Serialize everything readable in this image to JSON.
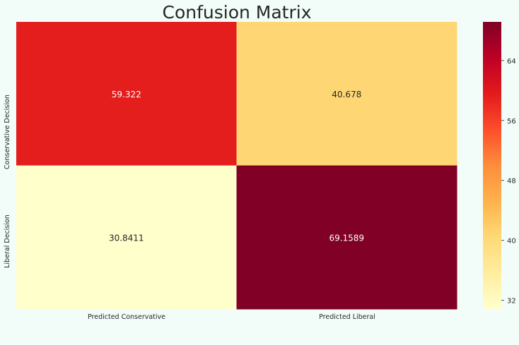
{
  "chart_data": {
    "type": "heatmap",
    "title": "Confusion Matrix",
    "columns": [
      "Predicted Conservative",
      "Predicted Liberal"
    ],
    "rows": [
      "Conservative Decision",
      "Liberal Decision"
    ],
    "values": [
      [
        59.322,
        40.678
      ],
      [
        30.8411,
        69.1589
      ]
    ],
    "value_labels": [
      [
        "59.322",
        "40.678"
      ],
      [
        "30.8411",
        "69.1589"
      ]
    ],
    "colormap": "YlOrRd",
    "colorbar": {
      "range": [
        30.8411,
        69.1589
      ],
      "ticks": [
        32,
        40,
        48,
        56,
        64
      ]
    },
    "colors": {
      "background": "#f2fdf9",
      "annotation_light": "#ffffff",
      "annotation_dark": "#262626"
    }
  }
}
